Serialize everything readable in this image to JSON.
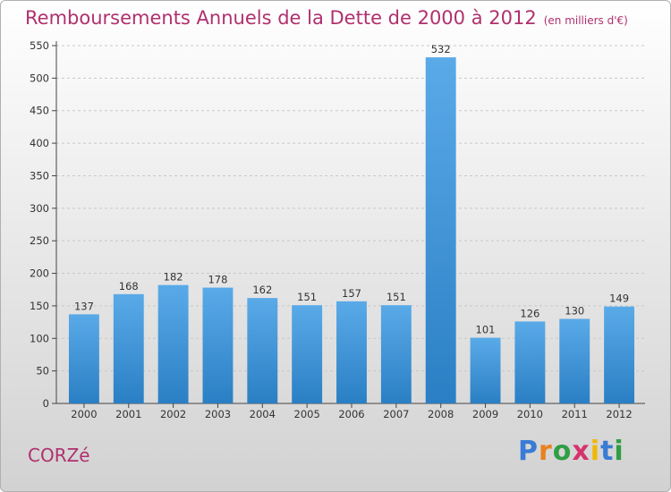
{
  "header": {
    "title": "Remboursements Annuels de la Dette de 2000 à 2012",
    "unit": "(en milliers d'€)"
  },
  "footer": {
    "commune": "CORZé",
    "logo": {
      "letters": [
        "P",
        "r",
        "o",
        "x",
        "i",
        "t",
        "i"
      ],
      "colors": [
        "#3a7bd5",
        "#e8821e",
        "#2f9e44",
        "#d6336c",
        "#f2b705",
        "#3a7bd5",
        "#2f9e44"
      ]
    }
  },
  "colors": {
    "bar": "#5aaae8",
    "bar_dark": "#2a7fc4",
    "title": "#b0306e",
    "axis": "#444444",
    "grid": "#c8c8c8"
  },
  "chart_data": {
    "type": "bar",
    "title": "Remboursements Annuels de la Dette de 2000 à 2012",
    "unit": "(en milliers d'€)",
    "categories": [
      "2000",
      "2001",
      "2002",
      "2003",
      "2004",
      "2005",
      "2006",
      "2007",
      "2008",
      "2009",
      "2010",
      "2011",
      "2012"
    ],
    "values": [
      137,
      168,
      182,
      178,
      162,
      151,
      157,
      151,
      532,
      101,
      126,
      130,
      149
    ],
    "ylim": [
      0,
      550
    ],
    "yticks": [
      0,
      50,
      100,
      150,
      200,
      250,
      300,
      350,
      400,
      450,
      500,
      550
    ],
    "grid": true,
    "legend": "none"
  }
}
